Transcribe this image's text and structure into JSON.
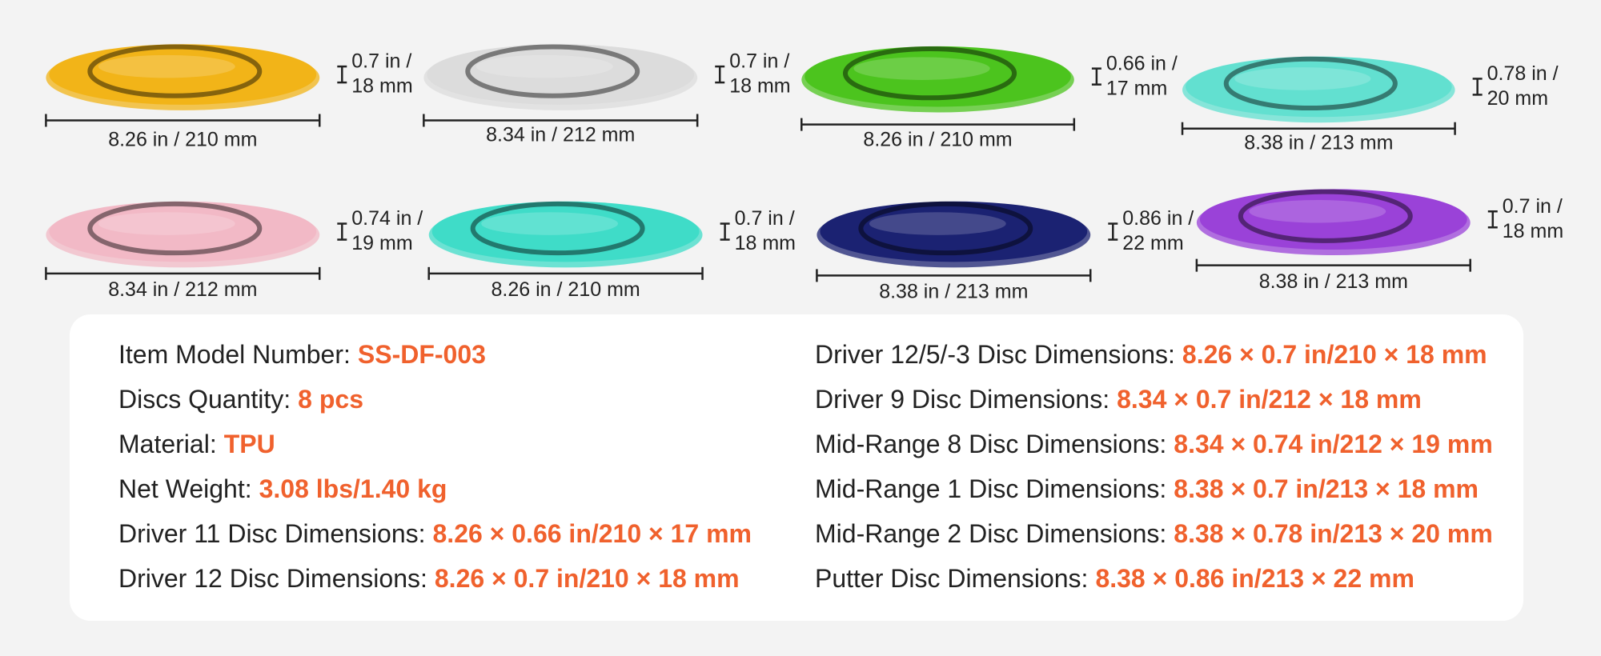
{
  "discs": [
    {
      "color": "#f2b418",
      "diameter": "8.26 in / 210 mm",
      "thickness": [
        "0.7 in /",
        "18 mm"
      ]
    },
    {
      "color": "#dcdcdc",
      "diameter": "8.34 in / 212 mm",
      "thickness": [
        "0.7 in /",
        "18 mm"
      ]
    },
    {
      "color": "#4cc41e",
      "diameter": "8.26 in / 210 mm",
      "thickness": [
        "0.66 in /",
        "17 mm"
      ]
    },
    {
      "color": "#62e0d0",
      "diameter": "8.38 in / 213 mm",
      "thickness": [
        "0.78 in /",
        "20 mm"
      ]
    },
    {
      "color": "#f2b9c6",
      "diameter": "8.34 in / 212 mm",
      "thickness": [
        "0.74 in /",
        "19 mm"
      ]
    },
    {
      "color": "#3fdcc8",
      "diameter": "8.26 in / 210 mm",
      "thickness": [
        "0.7 in /",
        "18 mm"
      ]
    },
    {
      "color": "#1b2272",
      "diameter": "8.38 in / 213 mm",
      "thickness": [
        "0.86 in /",
        "22 mm"
      ]
    },
    {
      "color": "#9a42d8",
      "diameter": "8.38 in / 213 mm",
      "thickness": [
        "0.7 in /",
        "18 mm"
      ]
    }
  ],
  "specs": {
    "left": [
      {
        "label": "Item Model Number:",
        "value": "SS-DF-003"
      },
      {
        "label": "Discs Quantity:",
        "value": "8 pcs"
      },
      {
        "label": "Material:",
        "value": "TPU"
      },
      {
        "label": "Net Weight:",
        "value": "3.08 lbs/1.40 kg"
      },
      {
        "label": "Driver 11 Disc Dimensions:",
        "value": "8.26 × 0.66 in/210 × 17 mm"
      },
      {
        "label": "Driver 12 Disc Dimensions:",
        "value": "8.26 × 0.7 in/210 × 18 mm"
      }
    ],
    "right": [
      {
        "label": "Driver 12/5/-3 Disc Dimensions:",
        "value": "8.26 × 0.7 in/210 × 18 mm"
      },
      {
        "label": "Driver 9 Disc Dimensions:",
        "value": "8.34 × 0.7 in/212 × 18 mm"
      },
      {
        "label": "Mid-Range 8 Disc Dimensions:",
        "value": "8.34 × 0.74 in/212 × 19 mm"
      },
      {
        "label": "Mid-Range 1 Disc Dimensions:",
        "value": "8.38 × 0.7 in/213 × 18 mm"
      },
      {
        "label": "Mid-Range 2 Disc Dimensions:",
        "value": "8.38 × 0.78 in/213 × 20 mm"
      },
      {
        "label": "Putter Disc Dimensions:",
        "value": "8.38 × 0.86 in/213 × 22 mm"
      }
    ]
  }
}
